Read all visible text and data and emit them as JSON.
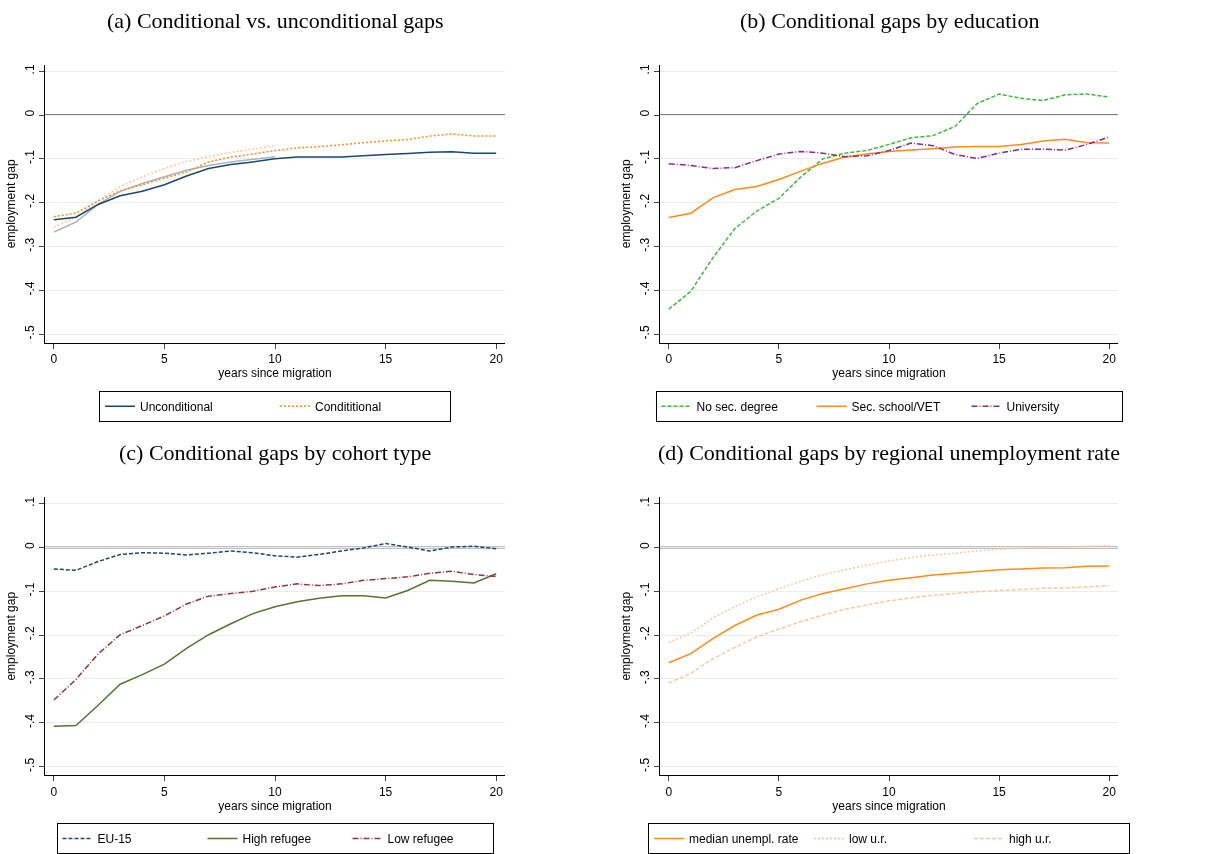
{
  "chart_data": [
    {
      "type": "line",
      "title": "(a) Conditional vs. unconditional gaps",
      "xlabel": "years since migration",
      "ylabel": "employment gap",
      "x": [
        0,
        1,
        2,
        3,
        4,
        5,
        6,
        7,
        8,
        9,
        10,
        11,
        12,
        13,
        14,
        15,
        16,
        17,
        18,
        19,
        20
      ],
      "xlim": [
        -0.4,
        20.4
      ],
      "xticks": [
        0,
        5,
        10,
        15,
        20
      ],
      "ylim": [
        -0.52,
        0.115
      ],
      "yticks": [
        {
          "value": 0.1,
          "label": ".1"
        },
        {
          "value": 0,
          "label": "0"
        },
        {
          "value": -0.1,
          "label": "-.1"
        },
        {
          "value": -0.2,
          "label": "-.2"
        },
        {
          "value": -0.3,
          "label": "-.3"
        },
        {
          "value": -0.4,
          "label": "-.4"
        },
        {
          "value": -0.5,
          "label": "-.5"
        }
      ],
      "grid": "y",
      "legend": "bottom",
      "marker": "none",
      "ref_lines": [
        {
          "axis": "y",
          "value": 0,
          "color": "#000000"
        }
      ],
      "series": [
        {
          "color": "#a8b4c4",
          "line_style": "solid",
          "x": [
            0,
            1,
            2,
            3,
            4,
            5,
            6,
            7,
            8,
            9,
            10
          ],
          "values": [
            -0.267,
            -0.244,
            -0.204,
            -0.174,
            -0.156,
            -0.141,
            -0.126,
            -0.115,
            -0.107,
            -0.101,
            -0.095
          ]
        },
        {
          "color": "#ffc898",
          "line_style": "dotted",
          "x": [
            0,
            1,
            2,
            3,
            4,
            5,
            6,
            7,
            8,
            9,
            10
          ],
          "values": [
            -0.256,
            -0.233,
            -0.196,
            -0.163,
            -0.141,
            -0.122,
            -0.106,
            -0.095,
            -0.085,
            -0.078,
            -0.07
          ]
        },
        {
          "name": "Unconditional",
          "color": "#1a476f",
          "line_style": "solid",
          "values": [
            -0.239,
            -0.233,
            -0.204,
            -0.184,
            -0.174,
            -0.159,
            -0.139,
            -0.122,
            -0.113,
            -0.107,
            -0.1,
            -0.096,
            -0.096,
            -0.096,
            -0.093,
            -0.09,
            -0.088,
            -0.085,
            -0.084,
            -0.087,
            -0.087
          ]
        },
        {
          "name": "Condititional",
          "color": "#ff8c1a",
          "line_style": "dotted",
          "values": [
            -0.232,
            -0.224,
            -0.196,
            -0.173,
            -0.159,
            -0.144,
            -0.13,
            -0.107,
            -0.096,
            -0.089,
            -0.081,
            -0.075,
            -0.072,
            -0.068,
            -0.063,
            -0.059,
            -0.056,
            -0.048,
            -0.043,
            -0.048,
            -0.048
          ]
        }
      ]
    },
    {
      "type": "line",
      "title": "(b) Conditional gaps by education",
      "xlabel": "years since migration",
      "ylabel": "employment gap",
      "x": [
        0,
        1,
        2,
        3,
        4,
        5,
        6,
        7,
        8,
        9,
        10,
        11,
        12,
        13,
        14,
        15,
        16,
        17,
        18,
        19,
        20
      ],
      "xlim": [
        -0.4,
        20.4
      ],
      "xticks": [
        0,
        5,
        10,
        15,
        20
      ],
      "ylim": [
        -0.52,
        0.115
      ],
      "yticks": [
        {
          "value": 0.1,
          "label": ".1"
        },
        {
          "value": 0,
          "label": "0"
        },
        {
          "value": -0.1,
          "label": "-.1"
        },
        {
          "value": -0.2,
          "label": "-.2"
        },
        {
          "value": -0.3,
          "label": "-.3"
        },
        {
          "value": -0.4,
          "label": "-.4"
        },
        {
          "value": -0.5,
          "label": "-.5"
        }
      ],
      "grid": "y",
      "legend": "bottom",
      "marker": "none",
      "ref_lines": [
        {
          "axis": "y",
          "value": 0,
          "color": "#000000"
        }
      ],
      "series": [
        {
          "name": "No sec. degree",
          "color": "#3cb83c",
          "line_style": "dashed",
          "values": [
            -0.443,
            -0.402,
            -0.326,
            -0.259,
            -0.219,
            -0.19,
            -0.141,
            -0.1,
            -0.087,
            -0.081,
            -0.067,
            -0.052,
            -0.047,
            -0.026,
            0.026,
            0.048,
            0.038,
            0.033,
            0.046,
            0.048,
            0.041
          ]
        },
        {
          "name": "Sec. school/VET",
          "color": "#ff8c1a",
          "line_style": "solid",
          "values": [
            -0.234,
            -0.224,
            -0.189,
            -0.17,
            -0.163,
            -0.147,
            -0.128,
            -0.11,
            -0.096,
            -0.089,
            -0.083,
            -0.08,
            -0.077,
            -0.073,
            -0.072,
            -0.072,
            -0.067,
            -0.059,
            -0.055,
            -0.063,
            -0.064
          ]
        },
        {
          "name": "University",
          "color": "#8b2a8b",
          "line_style": "dashdot",
          "values": [
            -0.111,
            -0.115,
            -0.122,
            -0.12,
            -0.104,
            -0.089,
            -0.083,
            -0.087,
            -0.095,
            -0.093,
            -0.081,
            -0.064,
            -0.07,
            -0.09,
            -0.099,
            -0.087,
            -0.078,
            -0.078,
            -0.08,
            -0.067,
            -0.05
          ]
        }
      ]
    },
    {
      "type": "line",
      "title": "(c) Conditional gaps by cohort type",
      "xlabel": "years since migration",
      "ylabel": "employment gap",
      "x": [
        0,
        1,
        2,
        3,
        4,
        5,
        6,
        7,
        8,
        9,
        10,
        11,
        12,
        13,
        14,
        15,
        16,
        17,
        18,
        19,
        20
      ],
      "xlim": [
        -0.4,
        20.4
      ],
      "xticks": [
        0,
        5,
        10,
        15,
        20
      ],
      "ylim": [
        -0.52,
        0.115
      ],
      "yticks": [
        {
          "value": 0.1,
          "label": ".1"
        },
        {
          "value": 0,
          "label": "0"
        },
        {
          "value": -0.1,
          "label": "-.1"
        },
        {
          "value": -0.2,
          "label": "-.2"
        },
        {
          "value": -0.3,
          "label": "-.3"
        },
        {
          "value": -0.4,
          "label": "-.4"
        },
        {
          "value": -0.5,
          "label": "-.5"
        }
      ],
      "grid": "y",
      "legend": "bottom",
      "marker": "none",
      "ref_lines": [
        {
          "axis": "y",
          "value": 0,
          "color": "#000000"
        }
      ],
      "series": [
        {
          "name": "EU-15",
          "color": "#1a476f",
          "line_style": "dashed",
          "values": [
            -0.049,
            -0.052,
            -0.032,
            -0.016,
            -0.012,
            -0.013,
            -0.017,
            -0.013,
            -0.008,
            -0.012,
            -0.019,
            -0.022,
            -0.016,
            -0.008,
            -0.001,
            0.009,
            0.001,
            -0.008,
            0.001,
            0.003,
            -0.003
          ]
        },
        {
          "name": "High refugee",
          "color": "#55752f",
          "line_style": "solid",
          "values": [
            -0.408,
            -0.406,
            -0.36,
            -0.312,
            -0.29,
            -0.266,
            -0.23,
            -0.199,
            -0.174,
            -0.151,
            -0.135,
            -0.124,
            -0.116,
            -0.11,
            -0.11,
            -0.115,
            -0.098,
            -0.075,
            -0.077,
            -0.081,
            -0.06
          ]
        },
        {
          "name": "Low refugee",
          "color": "#90353b",
          "line_style": "dashdot",
          "values": [
            -0.348,
            -0.301,
            -0.243,
            -0.199,
            -0.178,
            -0.156,
            -0.129,
            -0.111,
            -0.105,
            -0.1,
            -0.09,
            -0.083,
            -0.087,
            -0.083,
            -0.075,
            -0.071,
            -0.067,
            -0.059,
            -0.054,
            -0.062,
            -0.066
          ]
        }
      ]
    },
    {
      "type": "line",
      "title": "(d) Conditional gaps by regional unemployment rate",
      "xlabel": "years since migration",
      "ylabel": "employment gap",
      "x": [
        0,
        1,
        2,
        3,
        4,
        5,
        6,
        7,
        8,
        9,
        10,
        11,
        12,
        13,
        14,
        15,
        16,
        17,
        18,
        19,
        20
      ],
      "xlim": [
        -0.4,
        20.4
      ],
      "xticks": [
        0,
        5,
        10,
        15,
        20
      ],
      "ylim": [
        -0.52,
        0.115
      ],
      "yticks": [
        {
          "value": 0.1,
          "label": ".1"
        },
        {
          "value": 0,
          "label": "0"
        },
        {
          "value": -0.1,
          "label": "-.1"
        },
        {
          "value": -0.2,
          "label": "-.2"
        },
        {
          "value": -0.3,
          "label": "-.3"
        },
        {
          "value": -0.4,
          "label": "-.4"
        },
        {
          "value": -0.5,
          "label": "-.5"
        }
      ],
      "grid": "y",
      "legend": "bottom",
      "marker": "none",
      "ref_lines": [
        {
          "axis": "y",
          "value": 0,
          "color": "#000000"
        }
      ],
      "series": [
        {
          "name": "median unempl. rate",
          "color": "#ff8c1a",
          "line_style": "solid",
          "values": [
            -0.263,
            -0.242,
            -0.208,
            -0.178,
            -0.154,
            -0.141,
            -0.12,
            -0.105,
            -0.094,
            -0.083,
            -0.075,
            -0.069,
            -0.063,
            -0.059,
            -0.055,
            -0.051,
            -0.049,
            -0.047,
            -0.046,
            -0.043,
            -0.042
          ]
        },
        {
          "name": "low u.r.",
          "color": "#ffc898",
          "line_style": "dotted",
          "values": [
            -0.217,
            -0.195,
            -0.161,
            -0.135,
            -0.113,
            -0.094,
            -0.077,
            -0.062,
            -0.051,
            -0.04,
            -0.031,
            -0.023,
            -0.017,
            -0.013,
            -0.008,
            -0.004,
            -0.002,
            0.0,
            0.001,
            0.003,
            0.004
          ]
        },
        {
          "name": "high u.r.",
          "color": "#ffc898",
          "line_style": "dashed",
          "values": [
            -0.309,
            -0.287,
            -0.254,
            -0.228,
            -0.204,
            -0.186,
            -0.169,
            -0.154,
            -0.141,
            -0.131,
            -0.122,
            -0.115,
            -0.109,
            -0.105,
            -0.101,
            -0.098,
            -0.096,
            -0.093,
            -0.092,
            -0.09,
            -0.087
          ]
        }
      ]
    }
  ]
}
